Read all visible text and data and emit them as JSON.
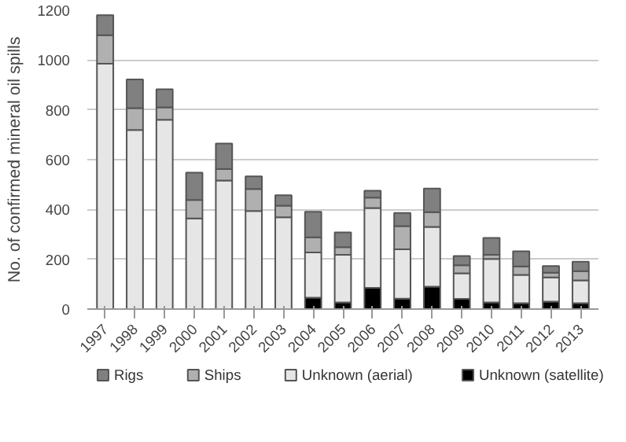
{
  "chart_data": {
    "type": "bar",
    "stacked": true,
    "ylabel": "No. of confirmed mineral oil spills",
    "categories": [
      "1997",
      "1998",
      "1999",
      "2000",
      "2001",
      "2002",
      "2003",
      "2004",
      "2005",
      "2006",
      "2007",
      "2008",
      "2009",
      "2010",
      "2011",
      "2012",
      "2013"
    ],
    "series": [
      {
        "name": "Unknown (satellite)",
        "color": "#000000",
        "values": [
          0,
          0,
          0,
          0,
          0,
          0,
          0,
          46,
          27,
          85,
          42,
          90,
          41,
          27,
          24,
          30,
          24
        ]
      },
      {
        "name": "Unknown (aerial)",
        "color": "#e6e6e6",
        "values": [
          985,
          719,
          760,
          364,
          516,
          394,
          369,
          181,
          191,
          321,
          198,
          240,
          103,
          174,
          113,
          97,
          91
        ]
      },
      {
        "name": "Ships",
        "color": "#b0b0b0",
        "values": [
          115,
          88,
          50,
          74,
          46,
          88,
          46,
          61,
          31,
          42,
          93,
          59,
          32,
          17,
          34,
          19,
          37
        ]
      },
      {
        "name": "Rigs",
        "color": "#808080",
        "values": [
          80,
          115,
          73,
          110,
          103,
          51,
          42,
          103,
          59,
          27,
          53,
          95,
          37,
          68,
          61,
          27,
          38
        ]
      }
    ],
    "ylim": [
      0,
      1200
    ],
    "yticks": [
      0,
      200,
      400,
      600,
      800,
      1000,
      1200
    ],
    "grid": "y",
    "legend": "bottom"
  }
}
